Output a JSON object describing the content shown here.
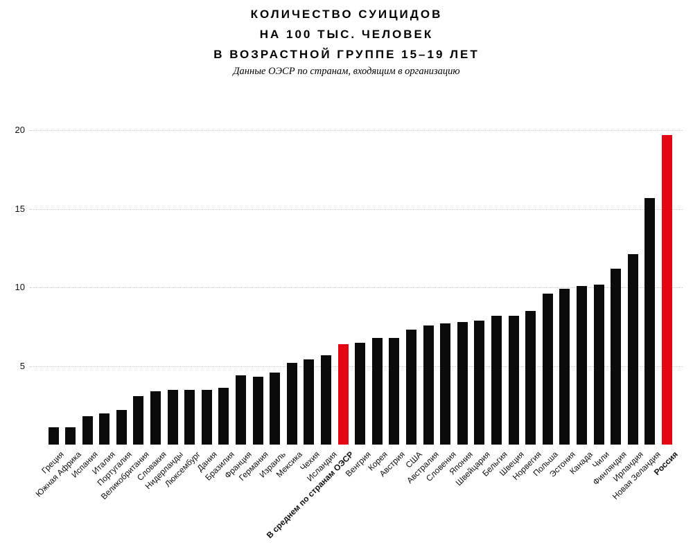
{
  "title": {
    "lines": [
      "КОЛИЧЕСТВО СУИЦИДОВ",
      "НА 100 ТЫС. ЧЕЛОВЕК",
      "В ВОЗРАСТНОЙ ГРУППЕ 15–19 ЛЕТ"
    ]
  },
  "subtitle": "Данные ОЭСР по странам, входящим в организацию",
  "colors": {
    "bar": "#0b0b0b",
    "highlight": "#e20713",
    "grid": "#c4c4c4",
    "text": "#111111"
  },
  "chart_data": {
    "type": "bar",
    "title": "КОЛИЧЕСТВО СУИЦИДОВ НА 100 ТЫС. ЧЕЛОВЕК В ВОЗРАСТНОЙ ГРУППЕ 15–19 ЛЕТ",
    "subtitle": "Данные ОЭСР по странам, входящим в организацию",
    "categories": [
      "Греция",
      "Южная Африка",
      "Испания",
      "Италия",
      "Португалия",
      "Великобритания",
      "Словакия",
      "Нидерланды",
      "Люксембург",
      "Дания",
      "Бразилия",
      "Франция",
      "Германия",
      "Израиль",
      "Мексика",
      "Чехия",
      "Исландия",
      "В среднем по странам ОЭСР",
      "Венгрия",
      "Корея",
      "Австрия",
      "США",
      "Австралия",
      "Словения",
      "Япония",
      "Швейцария",
      "Бельгия",
      "Швеция",
      "Норвегия",
      "Польша",
      "Эстония",
      "Канада",
      "Чили",
      "Финляндия",
      "Ирландия",
      "Новая Зеландия",
      "Россия"
    ],
    "values": [
      1.1,
      1.1,
      1.8,
      2.0,
      2.2,
      3.1,
      3.4,
      3.5,
      3.5,
      3.5,
      3.6,
      4.4,
      4.3,
      4.6,
      5.2,
      5.4,
      5.7,
      6.4,
      6.5,
      6.8,
      6.8,
      7.3,
      7.6,
      7.7,
      7.8,
      7.9,
      8.2,
      8.2,
      8.5,
      9.6,
      9.9,
      10.1,
      10.2,
      11.2,
      12.1,
      15.7,
      19.7
    ],
    "highlight_indices": [
      17,
      36
    ],
    "bar_color": "#0b0b0b",
    "highlight_color": "#e20713",
    "xlabel": "",
    "ylabel": "",
    "ylim": [
      0,
      20
    ],
    "yticks": [
      5,
      10,
      15,
      20
    ],
    "grid": "horizontal-dotted",
    "legend": "none"
  }
}
